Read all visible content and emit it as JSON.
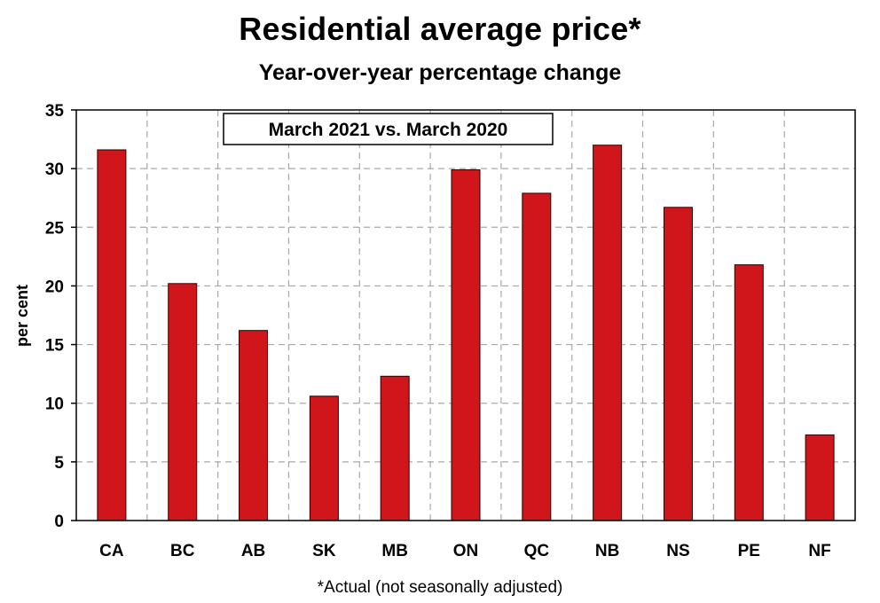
{
  "chart_data": {
    "type": "bar",
    "title": "Residential average price*",
    "subtitle": "Year-over-year percentage change",
    "ylabel": "per cent",
    "xlabel": "",
    "annotation": "March 2021 vs. March 2020",
    "footnote": "*Actual (not seasonally adjusted)",
    "categories": [
      "CA",
      "BC",
      "AB",
      "SK",
      "MB",
      "ON",
      "QC",
      "NB",
      "NS",
      "PE",
      "NF"
    ],
    "values": [
      31.6,
      20.2,
      16.2,
      10.6,
      12.3,
      29.9,
      27.9,
      32.0,
      26.7,
      21.8,
      7.3
    ],
    "ylim": [
      0,
      35
    ],
    "yticks": [
      0,
      5,
      10,
      15,
      20,
      25,
      30,
      35
    ],
    "grid": true,
    "colors": {
      "bar": "#d0161b",
      "bar_edge": "#2a0000",
      "grid": "#a8a8a8",
      "axis": "#000000"
    }
  }
}
